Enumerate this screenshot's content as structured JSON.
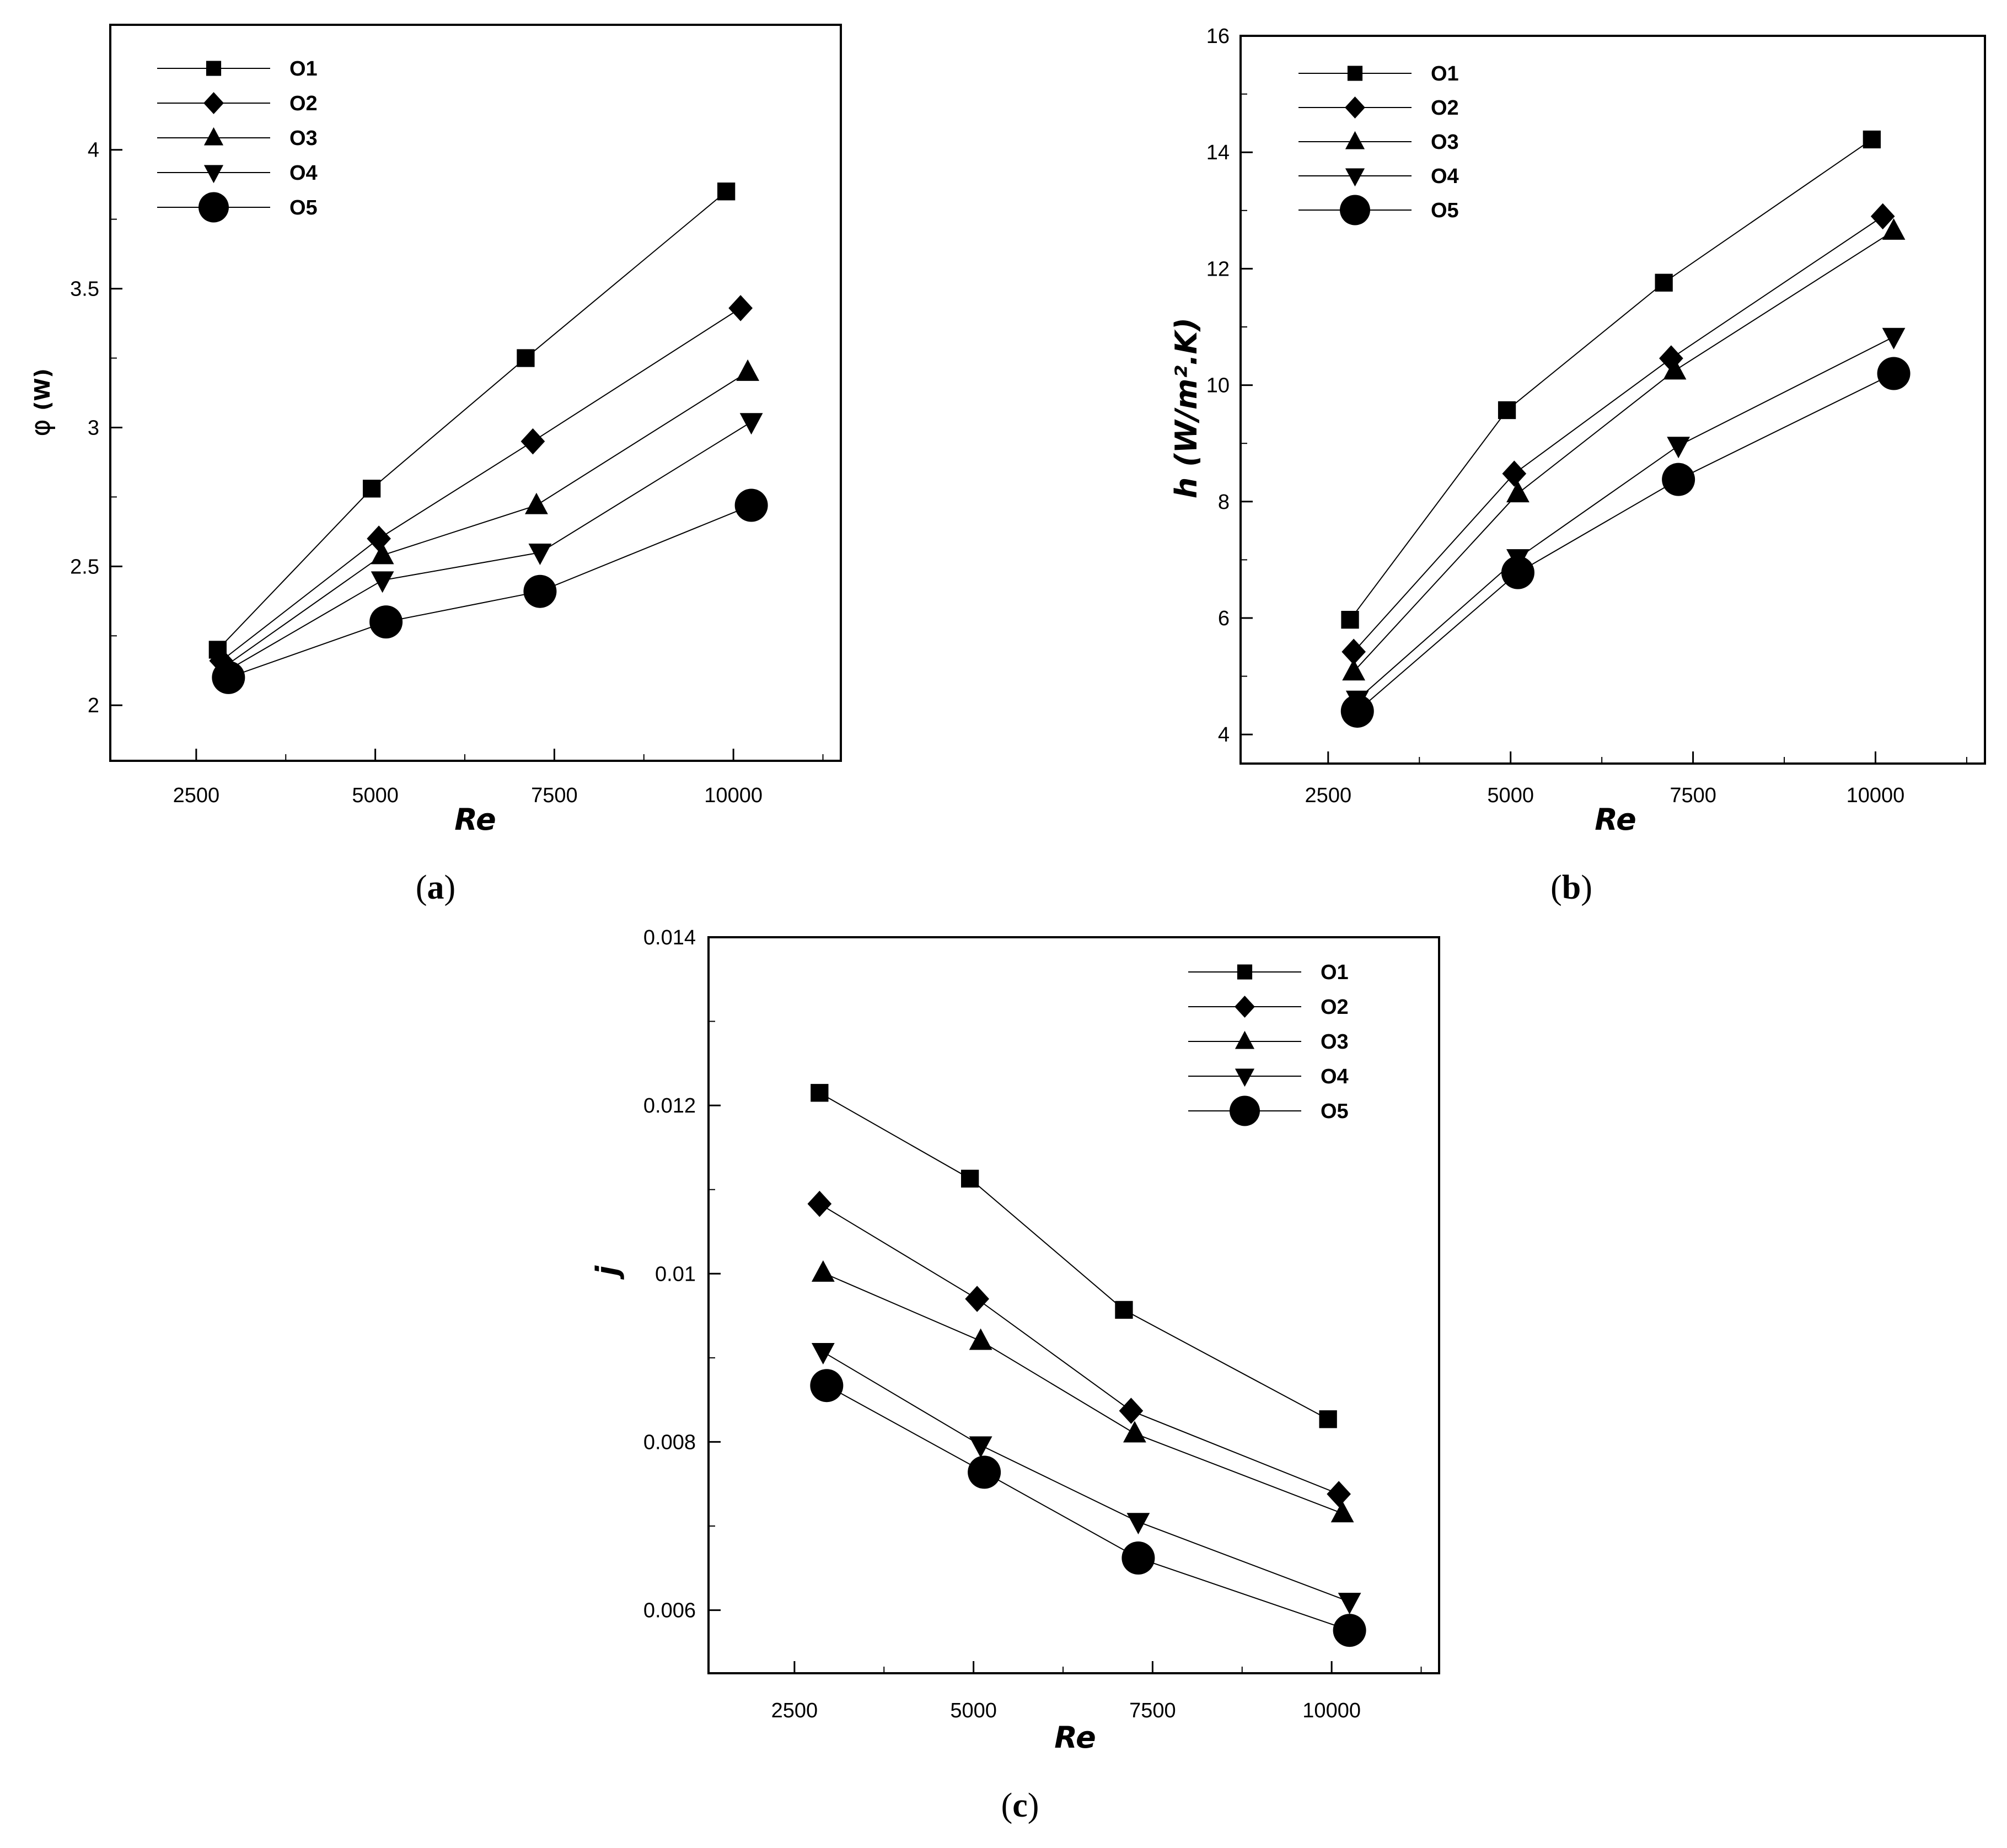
{
  "chart_data": [
    {
      "type": "line",
      "panel": "(a)",
      "panel_letter": "a",
      "xlabel": "Re",
      "ylabel": "φ",
      "ylabel_unit": "(W)",
      "xlim": [
        1300,
        11500
      ],
      "ylim": [
        1.8,
        4.45
      ],
      "xticks": [
        2500,
        5000,
        7500,
        10000
      ],
      "yticks": [
        2,
        2.5,
        3,
        3.5,
        4
      ],
      "ytick_labels": [
        "2",
        "2.5",
        "3",
        "3.5",
        "4"
      ],
      "legend_position": "top-left",
      "series": [
        {
          "name": "O1",
          "marker": "square",
          "x": [
            2800,
            4950,
            7100,
            9900
          ],
          "y": [
            2.2,
            2.78,
            3.25,
            3.85
          ]
        },
        {
          "name": "O2",
          "marker": "diamond",
          "x": [
            2850,
            5050,
            7200,
            10100
          ],
          "y": [
            2.16,
            2.6,
            2.95,
            3.43
          ]
        },
        {
          "name": "O3",
          "marker": "triangle-up",
          "x": [
            2900,
            5100,
            7250,
            10200
          ],
          "y": [
            2.14,
            2.54,
            2.72,
            3.2
          ]
        },
        {
          "name": "O4",
          "marker": "triangle-down",
          "x": [
            2900,
            5100,
            7300,
            10250
          ],
          "y": [
            2.12,
            2.45,
            2.55,
            3.02
          ]
        },
        {
          "name": "O5",
          "marker": "circle",
          "x": [
            2950,
            5150,
            7300,
            10250
          ],
          "y": [
            2.1,
            2.3,
            2.41,
            2.72
          ]
        }
      ]
    },
    {
      "type": "line",
      "panel": "(b)",
      "panel_letter": "b",
      "xlabel": "Re",
      "ylabel": "h (W/m².K)",
      "ylabel_unit": "",
      "xlim": [
        1300,
        11500
      ],
      "ylim": [
        3.5,
        16
      ],
      "xticks": [
        2500,
        5000,
        7500,
        10000
      ],
      "yticks": [
        4,
        6,
        8,
        10,
        12,
        14,
        16
      ],
      "ytick_labels": [
        "4",
        "6",
        "8",
        "10",
        "12",
        "14",
        "16"
      ],
      "legend_position": "top-left",
      "series": [
        {
          "name": "O1",
          "marker": "square",
          "x": [
            2800,
            4950,
            7100,
            9950
          ],
          "y": [
            5.97,
            9.57,
            11.76,
            14.22
          ]
        },
        {
          "name": "O2",
          "marker": "diamond",
          "x": [
            2850,
            5050,
            7200,
            10100
          ],
          "y": [
            5.42,
            8.48,
            10.46,
            12.9
          ]
        },
        {
          "name": "O3",
          "marker": "triangle-up",
          "x": [
            2850,
            5100,
            7250,
            10250
          ],
          "y": [
            5.08,
            8.14,
            10.25,
            12.65
          ]
        },
        {
          "name": "O4",
          "marker": "triangle-down",
          "x": [
            2900,
            5100,
            7300,
            10250
          ],
          "y": [
            4.6,
            7.03,
            8.96,
            10.83
          ]
        },
        {
          "name": "O5",
          "marker": "circle",
          "x": [
            2900,
            5100,
            7300,
            10250
          ],
          "y": [
            4.4,
            6.78,
            8.38,
            10.2
          ]
        }
      ]
    },
    {
      "type": "line",
      "panel": "(c)",
      "panel_letter": "c",
      "xlabel": "Re",
      "ylabel": "j",
      "ylabel_unit": "",
      "xlim": [
        1300,
        11500
      ],
      "ylim": [
        0.00525,
        0.014
      ],
      "xticks": [
        2500,
        5000,
        7500,
        10000
      ],
      "yticks": [
        0.006,
        0.008,
        0.01,
        0.012,
        0.014
      ],
      "ytick_labels": [
        "0.006",
        "0.008",
        "0.01",
        "0.012",
        "0.014"
      ],
      "legend_position": "top-right",
      "series": [
        {
          "name": "O1",
          "marker": "square",
          "x": [
            2850,
            4950,
            7100,
            9950
          ],
          "y": [
            0.01215,
            0.01113,
            0.00957,
            0.00827
          ]
        },
        {
          "name": "O2",
          "marker": "diamond",
          "x": [
            2850,
            5050,
            7200,
            10100
          ],
          "y": [
            0.01083,
            0.0097,
            0.00837,
            0.00738
          ]
        },
        {
          "name": "O3",
          "marker": "triangle-up",
          "x": [
            2900,
            5100,
            7250,
            10150
          ],
          "y": [
            0.01001,
            0.0092,
            0.0081,
            0.00715
          ]
        },
        {
          "name": "O4",
          "marker": "triangle-down",
          "x": [
            2900,
            5100,
            7300,
            10250
          ],
          "y": [
            0.00907,
            0.00796,
            0.00705,
            0.0061
          ]
        },
        {
          "name": "O5",
          "marker": "circle",
          "x": [
            2950,
            5150,
            7300,
            10250
          ],
          "y": [
            0.00867,
            0.00764,
            0.00662,
            0.00576
          ]
        }
      ]
    }
  ]
}
